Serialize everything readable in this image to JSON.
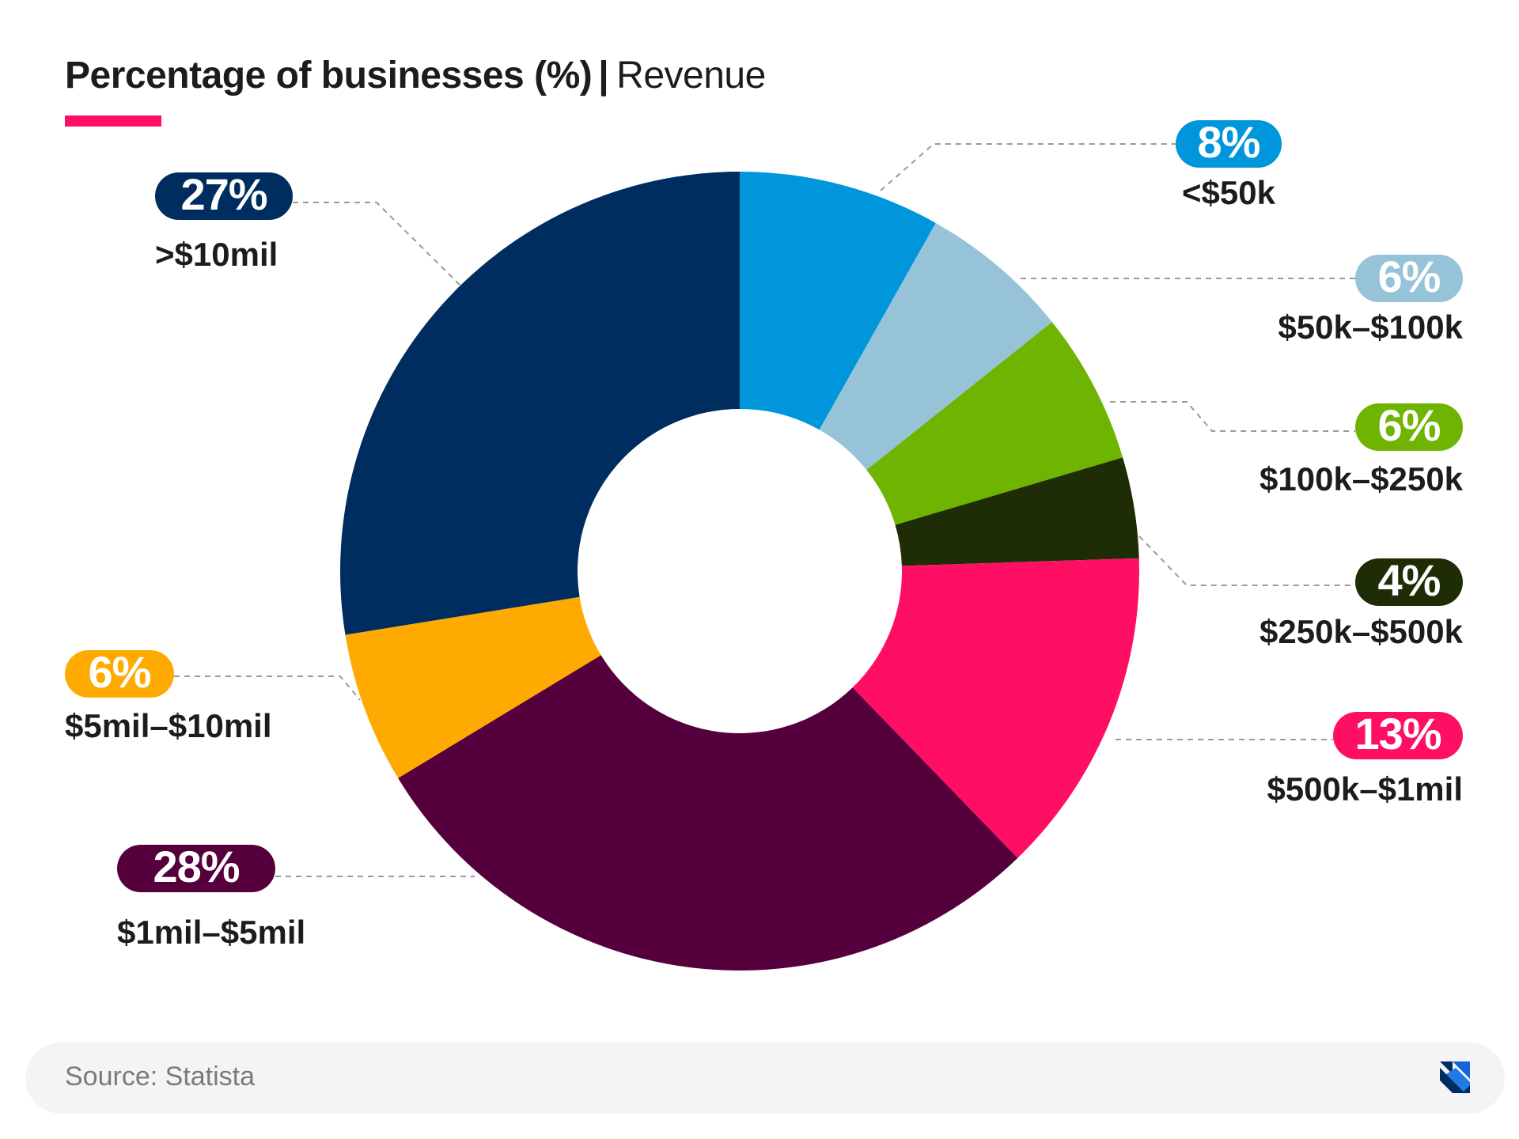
{
  "title": {
    "bold": "Percentage of businesses (%)",
    "separator": "|",
    "normal": "Revenue",
    "accent_color": "#ff0f64"
  },
  "footer": {
    "source": "Source: Statista",
    "logo_icon": "brand-logo-icon"
  },
  "chart_data": {
    "type": "pie",
    "variant": "donut",
    "title": "Percentage of businesses (%) | Revenue",
    "unit": "%",
    "start_angle_deg": 0,
    "direction": "clockwise",
    "slices": [
      {
        "label": "<$50k",
        "value": 8,
        "value_label": "8%",
        "color": "#0096dc",
        "text_color": "#ffffff"
      },
      {
        "label": "$50k–$100k",
        "value": 6,
        "value_label": "6%",
        "color": "#96c3d7",
        "text_color": "#ffffff"
      },
      {
        "label": "$100k–$250k",
        "value": 6,
        "value_label": "6%",
        "color": "#6eb400",
        "text_color": "#ffffff"
      },
      {
        "label": "$250k–$500k",
        "value": 4,
        "value_label": "4%",
        "color": "#1e2d05",
        "text_color": "#ffffff"
      },
      {
        "label": "$500k–$1mil",
        "value": 13,
        "value_label": "13%",
        "color": "#ff0f64",
        "text_color": "#ffffff"
      },
      {
        "label": "$1mil–$5mil",
        "value": 28,
        "value_label": "28%",
        "color": "#55003c",
        "text_color": "#ffffff"
      },
      {
        "label": "$5mil–$10mil",
        "value": 6,
        "value_label": "6%",
        "color": "#ffaa00",
        "text_color": "#ffffff"
      },
      {
        "label": ">$10mil",
        "value": 27,
        "value_label": "27%",
        "color": "#002d5f",
        "text_color": "#ffffff"
      }
    ],
    "legend": "none",
    "labels": "outside-with-leader-lines"
  }
}
